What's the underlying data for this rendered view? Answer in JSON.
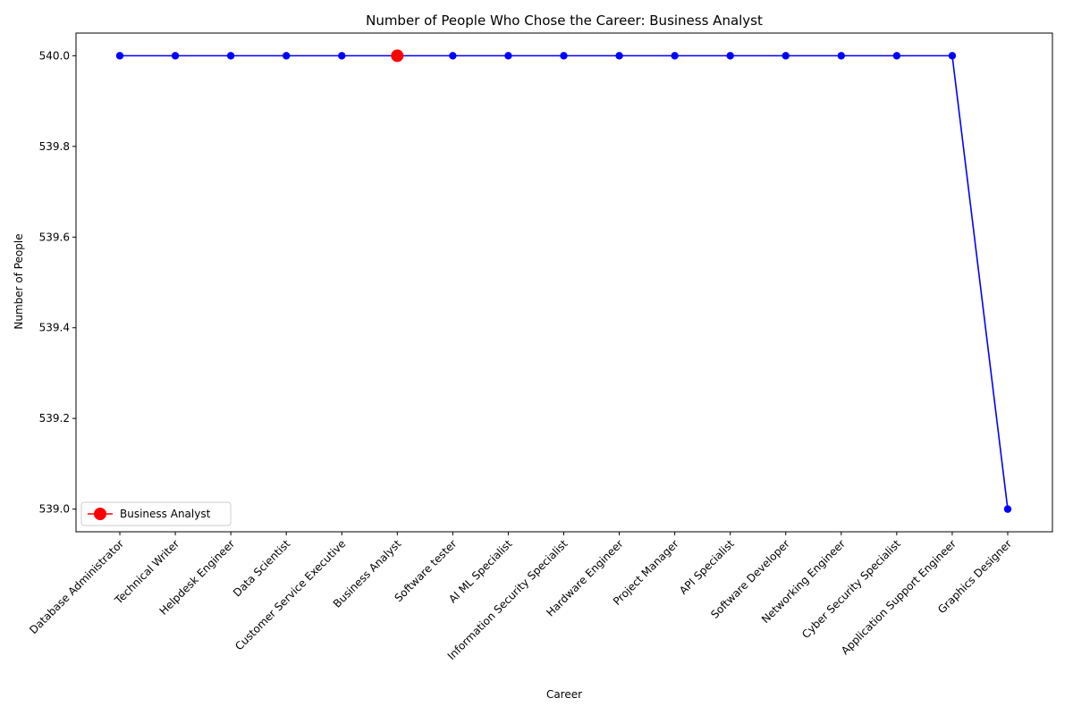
{
  "chart_data": {
    "type": "line",
    "title": "Number of People Who Chose the Career: Business Analyst",
    "xlabel": "Career",
    "ylabel": "Number of People",
    "categories": [
      "Database Administrator",
      "Technical Writer",
      "Helpdesk Engineer",
      "Data Scientist",
      "Customer Service Executive",
      "Business Analyst",
      "Software tester",
      "AI ML Specialist",
      "Information Security Specialist",
      "Hardware Engineer",
      "Project Manager",
      "API Specialist",
      "Software Developer",
      "Networking Engineer",
      "Cyber Security Specialist",
      "Application Support Engineer",
      "Graphics Designer"
    ],
    "series": [
      {
        "values": [
          540,
          540,
          540,
          540,
          540,
          540,
          540,
          540,
          540,
          540,
          540,
          540,
          540,
          540,
          540,
          540,
          539
        ],
        "color": "#0000ff"
      }
    ],
    "highlight": {
      "name": "Business Analyst",
      "category": "Business Analyst",
      "value": 540,
      "color": "#ff0000"
    },
    "yticks": [
      "539.0",
      "539.2",
      "539.4",
      "539.6",
      "539.8",
      "540.0"
    ],
    "ylim": [
      538.95,
      540.05
    ],
    "grid": false,
    "legend_position": "lower-left"
  }
}
